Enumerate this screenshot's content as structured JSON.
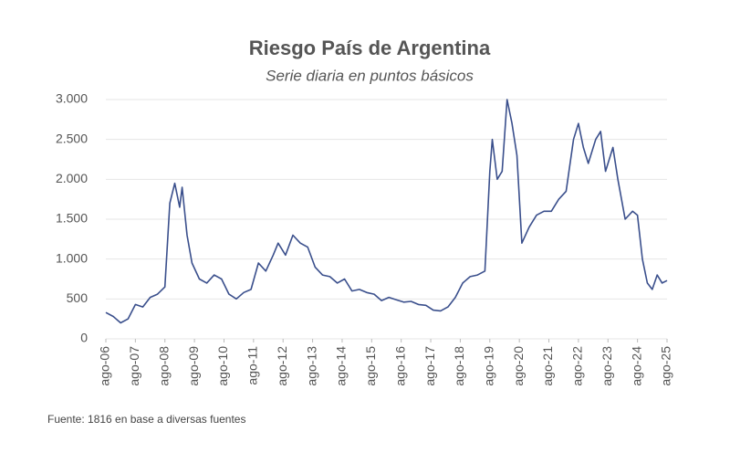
{
  "chart_data": {
    "type": "line",
    "title": "Riesgo País de Argentina",
    "subtitle": "Serie diaria en puntos básicos",
    "source": "Fuente: 1816  en base a diversas fuentes",
    "x": [
      "2006-08",
      "2006-11",
      "2007-02",
      "2007-05",
      "2007-08",
      "2007-11",
      "2008-02",
      "2008-05",
      "2008-08",
      "2008-10",
      "2008-12",
      "2009-02",
      "2009-03",
      "2009-05",
      "2009-07",
      "2009-10",
      "2010-01",
      "2010-04",
      "2010-07",
      "2010-10",
      "2011-01",
      "2011-04",
      "2011-07",
      "2011-10",
      "2012-01",
      "2012-04",
      "2012-06",
      "2012-09",
      "2012-12",
      "2013-03",
      "2013-06",
      "2013-09",
      "2013-12",
      "2014-03",
      "2014-06",
      "2014-09",
      "2014-12",
      "2015-03",
      "2015-06",
      "2015-09",
      "2015-12",
      "2016-03",
      "2016-06",
      "2016-09",
      "2016-12",
      "2017-03",
      "2017-06",
      "2017-09",
      "2017-12",
      "2018-03",
      "2018-06",
      "2018-09",
      "2018-12",
      "2019-03",
      "2019-06",
      "2019-08",
      "2019-09",
      "2019-11",
      "2020-01",
      "2020-03",
      "2020-05",
      "2020-07",
      "2020-09",
      "2020-12",
      "2021-03",
      "2021-06",
      "2021-09",
      "2021-12",
      "2022-03",
      "2022-06",
      "2022-08",
      "2022-10",
      "2022-12",
      "2023-03",
      "2023-05",
      "2023-07",
      "2023-10",
      "2023-12",
      "2024-03",
      "2024-06",
      "2024-08",
      "2024-10",
      "2024-12",
      "2025-02",
      "2025-04",
      "2025-06",
      "2025-08"
    ],
    "series": [
      {
        "name": "Riesgo País",
        "color": "#3a4f8c",
        "values": [
          330,
          280,
          200,
          250,
          430,
          400,
          520,
          560,
          650,
          1700,
          1950,
          1650,
          1900,
          1300,
          950,
          750,
          700,
          800,
          750,
          560,
          500,
          580,
          620,
          950,
          850,
          1050,
          1200,
          1050,
          1300,
          1200,
          1150,
          900,
          800,
          780,
          700,
          750,
          600,
          620,
          580,
          560,
          480,
          520,
          490,
          460,
          470,
          430,
          420,
          360,
          350,
          400,
          520,
          700,
          780,
          800,
          850,
          2100,
          2500,
          2000,
          2100,
          3000,
          2700,
          2300,
          1200,
          1400,
          1550,
          1600,
          1600,
          1750,
          1850,
          2500,
          2700,
          2400,
          2200,
          2500,
          2600,
          2100,
          2400,
          2000,
          1500,
          1600,
          1550,
          1000,
          700,
          620,
          800,
          700,
          730
        ]
      }
    ],
    "xlim": [
      "2006-08",
      "2025-08"
    ],
    "xticks": [
      {
        "value": "2006-08",
        "label": "ago-06"
      },
      {
        "value": "2007-08",
        "label": "ago-07"
      },
      {
        "value": "2008-08",
        "label": "ago-08"
      },
      {
        "value": "2009-08",
        "label": "ago-09"
      },
      {
        "value": "2010-08",
        "label": "ago-10"
      },
      {
        "value": "2011-08",
        "label": "ago-11"
      },
      {
        "value": "2012-08",
        "label": "ago-12"
      },
      {
        "value": "2013-08",
        "label": "ago-13"
      },
      {
        "value": "2014-08",
        "label": "ago-14"
      },
      {
        "value": "2015-08",
        "label": "ago-15"
      },
      {
        "value": "2016-08",
        "label": "ago-16"
      },
      {
        "value": "2017-08",
        "label": "ago-17"
      },
      {
        "value": "2018-08",
        "label": "ago-18"
      },
      {
        "value": "2019-08",
        "label": "ago-19"
      },
      {
        "value": "2020-08",
        "label": "ago-20"
      },
      {
        "value": "2021-08",
        "label": "ago-21"
      },
      {
        "value": "2022-08",
        "label": "ago-22"
      },
      {
        "value": "2023-08",
        "label": "ago-23"
      },
      {
        "value": "2024-08",
        "label": "ago-24"
      },
      {
        "value": "2025-08",
        "label": "ago-25"
      }
    ],
    "ylim": [
      0,
      3000
    ],
    "yticks": [
      0,
      500,
      {
        "value": 1000,
        "label": "1.000"
      },
      {
        "value": 1500,
        "label": "1.500"
      },
      {
        "value": 2000,
        "label": "2.000"
      },
      {
        "value": 2500,
        "label": "2.500"
      },
      {
        "value": 3000,
        "label": "3.000"
      }
    ],
    "grid": true
  }
}
